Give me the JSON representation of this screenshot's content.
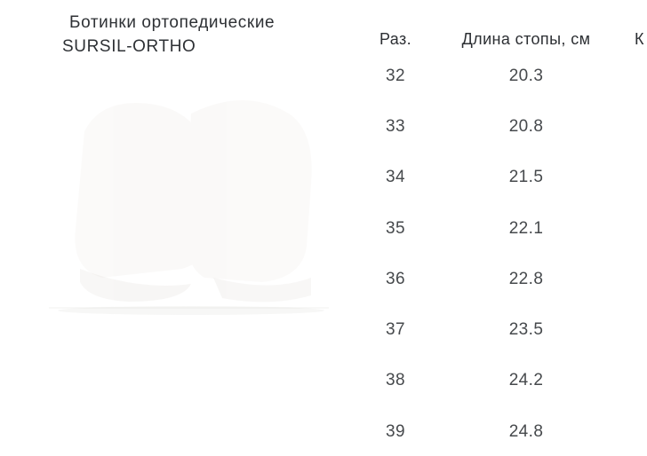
{
  "product": {
    "title_line1": "Ботинки ортопедические",
    "title_line2": "SURSIL-ORTHO"
  },
  "table": {
    "columns": [
      {
        "label": "Раз."
      },
      {
        "label": "Длина стопы, см"
      },
      {
        "label": "К"
      }
    ],
    "rows": [
      {
        "size": "32",
        "length": "20.3"
      },
      {
        "size": "33",
        "length": "20.8"
      },
      {
        "size": "34",
        "length": "21.5"
      },
      {
        "size": "35",
        "length": "22.1"
      },
      {
        "size": "36",
        "length": "22.8"
      },
      {
        "size": "37",
        "length": "23.5"
      },
      {
        "size": "38",
        "length": "24.2"
      },
      {
        "size": "39",
        "length": "24.8"
      }
    ]
  },
  "colors": {
    "background": "#ffffff",
    "heading_text": "#2c2f33",
    "row_text": "#46494c"
  }
}
